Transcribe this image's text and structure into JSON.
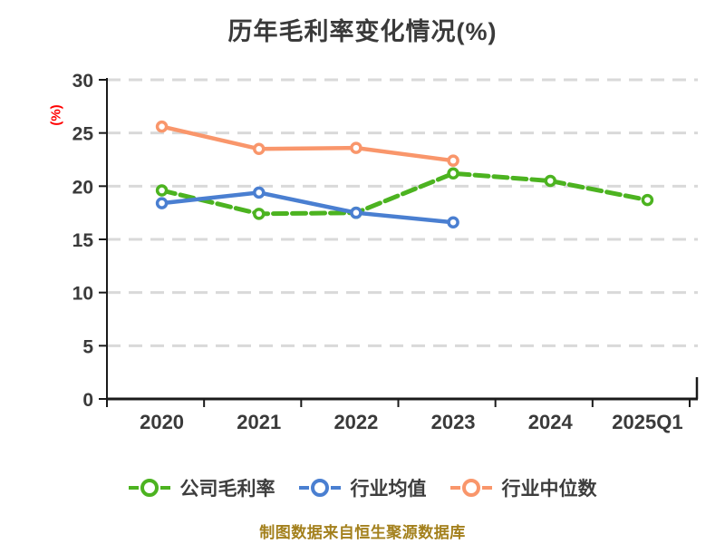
{
  "footer": {
    "text": "制图数据来自恒生聚源数据库",
    "color": "#a3801c"
  },
  "chart_data": {
    "type": "line",
    "title": "历年毛利率变化情况(%)",
    "title_color": "#3a3a3a",
    "xlabel": "",
    "ylabel": "(%)",
    "ylabel_color": "#ff0000",
    "categories": [
      "2020",
      "2021",
      "2022",
      "2023",
      "2024",
      "2025Q1"
    ],
    "series": [
      {
        "name": "公司毛利率",
        "color": "#4cb320",
        "line_style": "dashed",
        "values": [
          19.6,
          17.4,
          17.5,
          21.2,
          20.5,
          18.7
        ]
      },
      {
        "name": "行业均值",
        "color": "#4a7fd1",
        "line_style": "solid",
        "values": [
          18.4,
          19.4,
          17.5,
          16.6,
          null,
          null
        ]
      },
      {
        "name": "行业中位数",
        "color": "#f9966b",
        "line_style": "solid",
        "values": [
          25.6,
          23.5,
          23.6,
          22.4,
          null,
          null
        ]
      }
    ],
    "ylim": [
      0,
      30
    ],
    "y_ticks": [
      0,
      5,
      10,
      15,
      20,
      25,
      30
    ],
    "grid": "dashed horizontal gridlines",
    "grid_color": "#d9d9d9",
    "axis_color": "#1a1a1a",
    "tick_label_color": "#3a3a3a",
    "marker": "circle, white fill, colored ring",
    "legend_position": "bottom"
  }
}
